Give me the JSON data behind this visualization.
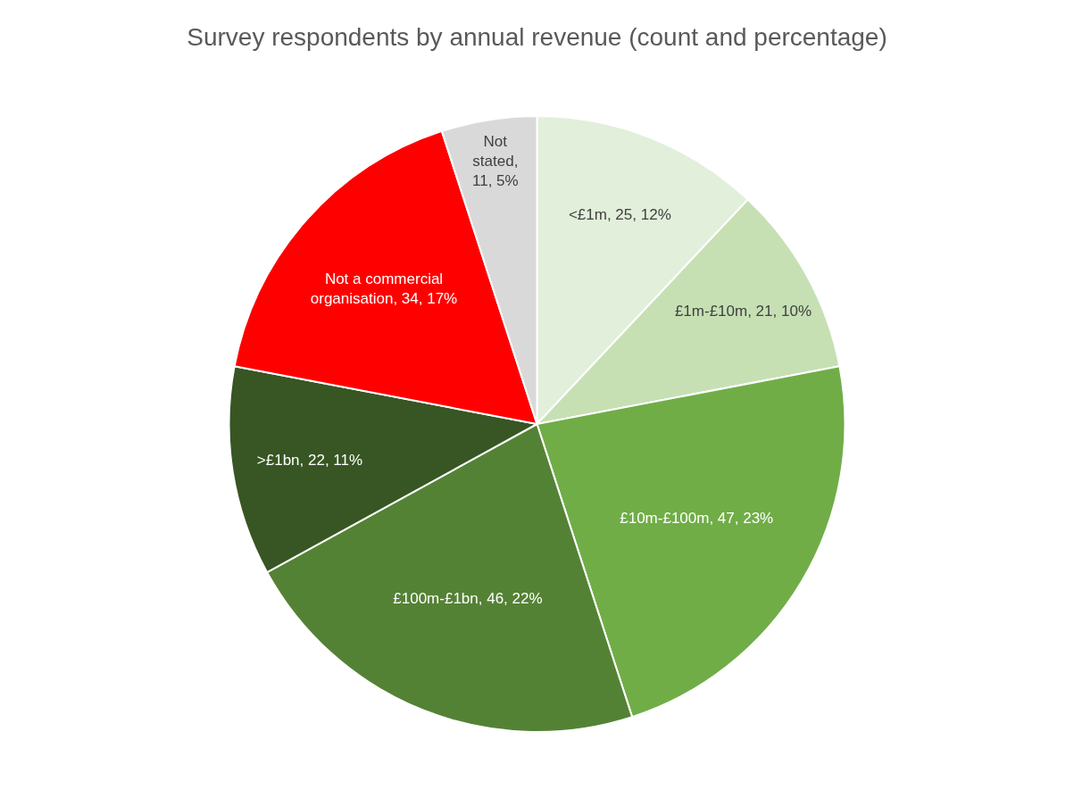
{
  "chart_data": {
    "type": "pie",
    "title": "Survey respondents by annual revenue (count and percentage)",
    "categories": [
      "<£1m, 25, 12%",
      "£1m-£10m, 21, 10%",
      "£10m-£100m, 47, 23%",
      "£100m-£1bn, 46, 22%",
      ">£1bn, 22, 11%",
      "Not a commercial organisation, 34, 17%",
      "Not stated, 11, 5%"
    ],
    "values": [
      12,
      10,
      23,
      22,
      11,
      17,
      5
    ],
    "colors": [
      "#e2efda",
      "#c6e0b4",
      "#70ad47",
      "#548235",
      "#375623",
      "#ff0000",
      "#d9d9d9"
    ],
    "legend": false
  }
}
